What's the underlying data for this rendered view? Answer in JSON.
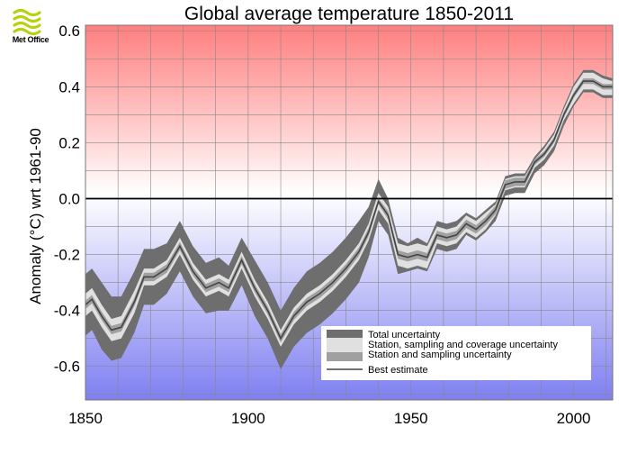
{
  "logo": {
    "text": "Met Office",
    "icon": "met-office-waves-logo",
    "color": "#b5d20c"
  },
  "chart_data": {
    "type": "line",
    "title": "Global average temperature 1850-2011",
    "xlabel": "",
    "ylabel": "Anomaly (°C) wrt 1961-90",
    "xlim": [
      1850,
      2012
    ],
    "ylim": [
      -0.72,
      0.62
    ],
    "x_ticks": [
      1850,
      1900,
      1950,
      2000
    ],
    "y_ticks": [
      0.6,
      0.4,
      0.2,
      0.0,
      -0.2,
      -0.4,
      -0.6
    ],
    "y_tick_labels": [
      "0.6",
      "0.4",
      "0.2",
      "0.0",
      "-0.2",
      "-0.4",
      "-0.6"
    ],
    "grid": true,
    "background": {
      "warm": "#ff7f7f",
      "cold": "#7f7ff2"
    },
    "legend": {
      "placement": "bottom-right",
      "entries": [
        {
          "label": "Total uncertainty",
          "color": "#6e6e6e"
        },
        {
          "label": "Station, sampling and coverage uncertainty",
          "color": "#e0e0e0"
        },
        {
          "label": "Station and sampling uncertainty",
          "color": "#a0a0a0"
        },
        {
          "label": "Best estimate",
          "color": "#555555"
        }
      ]
    },
    "x": [
      1850,
      1852,
      1855,
      1858,
      1861,
      1865,
      1868,
      1871,
      1875,
      1879,
      1883,
      1887,
      1891,
      1894,
      1898,
      1902,
      1906,
      1910,
      1914,
      1918,
      1922,
      1926,
      1930,
      1934,
      1937,
      1940,
      1943,
      1946,
      1949,
      1952,
      1955,
      1958,
      1961,
      1964,
      1967,
      1970,
      1973,
      1976,
      1979,
      1982,
      1985,
      1988,
      1991,
      1994,
      1997,
      2000,
      2003,
      2006,
      2009,
      2012
    ],
    "series": [
      {
        "name": "Best estimate",
        "values": [
          -0.38,
          -0.36,
          -0.42,
          -0.47,
          -0.46,
          -0.37,
          -0.28,
          -0.28,
          -0.25,
          -0.17,
          -0.26,
          -0.32,
          -0.3,
          -0.32,
          -0.22,
          -0.32,
          -0.4,
          -0.5,
          -0.42,
          -0.37,
          -0.34,
          -0.3,
          -0.25,
          -0.19,
          -0.12,
          -0.01,
          -0.06,
          -0.2,
          -0.21,
          -0.2,
          -0.21,
          -0.13,
          -0.14,
          -0.13,
          -0.09,
          -0.11,
          -0.08,
          -0.04,
          0.05,
          0.06,
          0.06,
          0.13,
          0.16,
          0.21,
          0.3,
          0.37,
          0.42,
          0.42,
          0.4,
          0.4
        ]
      },
      {
        "name": "Total uncertainty upper",
        "values": [
          -0.27,
          -0.25,
          -0.3,
          -0.35,
          -0.35,
          -0.26,
          -0.18,
          -0.18,
          -0.16,
          -0.08,
          -0.17,
          -0.23,
          -0.21,
          -0.24,
          -0.14,
          -0.22,
          -0.3,
          -0.4,
          -0.32,
          -0.26,
          -0.23,
          -0.19,
          -0.14,
          -0.08,
          -0.03,
          0.07,
          0.0,
          -0.14,
          -0.16,
          -0.14,
          -0.16,
          -0.08,
          -0.09,
          -0.08,
          -0.05,
          -0.07,
          -0.04,
          -0.01,
          0.08,
          0.09,
          0.09,
          0.15,
          0.19,
          0.24,
          0.33,
          0.41,
          0.46,
          0.46,
          0.44,
          0.43
        ]
      },
      {
        "name": "Total uncertainty lower",
        "values": [
          -0.49,
          -0.47,
          -0.54,
          -0.58,
          -0.57,
          -0.48,
          -0.38,
          -0.38,
          -0.34,
          -0.26,
          -0.35,
          -0.41,
          -0.4,
          -0.4,
          -0.31,
          -0.42,
          -0.5,
          -0.61,
          -0.53,
          -0.48,
          -0.45,
          -0.41,
          -0.36,
          -0.3,
          -0.21,
          -0.08,
          -0.13,
          -0.27,
          -0.26,
          -0.25,
          -0.26,
          -0.18,
          -0.19,
          -0.18,
          -0.13,
          -0.15,
          -0.12,
          -0.08,
          0.01,
          0.02,
          0.02,
          0.09,
          0.12,
          0.17,
          0.26,
          0.33,
          0.38,
          0.38,
          0.36,
          0.36
        ]
      },
      {
        "name": "Station, sampling and coverage uncertainty upper",
        "values": [
          -0.34,
          -0.32,
          -0.38,
          -0.43,
          -0.42,
          -0.33,
          -0.25,
          -0.25,
          -0.22,
          -0.14,
          -0.23,
          -0.29,
          -0.27,
          -0.29,
          -0.19,
          -0.29,
          -0.37,
          -0.47,
          -0.39,
          -0.34,
          -0.31,
          -0.27,
          -0.22,
          -0.16,
          -0.09,
          0.02,
          -0.03,
          -0.16,
          -0.17,
          -0.16,
          -0.17,
          -0.1,
          -0.11,
          -0.1,
          -0.06,
          -0.08,
          -0.05,
          -0.02,
          0.07,
          0.08,
          0.08,
          0.14,
          0.18,
          0.23,
          0.32,
          0.4,
          0.45,
          0.45,
          0.43,
          0.42
        ]
      },
      {
        "name": "Station, sampling and coverage uncertainty lower",
        "values": [
          -0.42,
          -0.4,
          -0.46,
          -0.51,
          -0.5,
          -0.41,
          -0.31,
          -0.31,
          -0.28,
          -0.2,
          -0.29,
          -0.35,
          -0.33,
          -0.35,
          -0.25,
          -0.35,
          -0.43,
          -0.53,
          -0.45,
          -0.4,
          -0.37,
          -0.33,
          -0.28,
          -0.22,
          -0.15,
          -0.04,
          -0.09,
          -0.24,
          -0.25,
          -0.24,
          -0.25,
          -0.16,
          -0.17,
          -0.16,
          -0.12,
          -0.14,
          -0.11,
          -0.06,
          0.03,
          0.04,
          0.04,
          0.11,
          0.14,
          0.19,
          0.28,
          0.34,
          0.39,
          0.39,
          0.37,
          0.37
        ]
      },
      {
        "name": "Station and sampling uncertainty upper",
        "values": [
          -0.365,
          -0.345,
          -0.405,
          -0.455,
          -0.445,
          -0.355,
          -0.265,
          -0.265,
          -0.235,
          -0.155,
          -0.245,
          -0.305,
          -0.285,
          -0.305,
          -0.205,
          -0.305,
          -0.385,
          -0.485,
          -0.405,
          -0.355,
          -0.325,
          -0.285,
          -0.235,
          -0.175,
          -0.105,
          0.0,
          -0.045,
          -0.185,
          -0.195,
          -0.185,
          -0.195,
          -0.115,
          -0.125,
          -0.115,
          -0.075,
          -0.095,
          -0.065,
          -0.025,
          0.065,
          0.075,
          0.075,
          0.14,
          0.17,
          0.22,
          0.31,
          0.38,
          0.43,
          0.43,
          0.41,
          0.41
        ]
      },
      {
        "name": "Station and sampling uncertainty lower",
        "values": [
          -0.395,
          -0.375,
          -0.435,
          -0.485,
          -0.475,
          -0.385,
          -0.295,
          -0.295,
          -0.265,
          -0.185,
          -0.275,
          -0.335,
          -0.315,
          -0.335,
          -0.235,
          -0.335,
          -0.415,
          -0.515,
          -0.435,
          -0.385,
          -0.355,
          -0.315,
          -0.265,
          -0.205,
          -0.135,
          -0.02,
          -0.075,
          -0.215,
          -0.225,
          -0.215,
          -0.225,
          -0.145,
          -0.155,
          -0.145,
          -0.105,
          -0.125,
          -0.095,
          -0.055,
          0.035,
          0.045,
          0.045,
          0.12,
          0.15,
          0.2,
          0.29,
          0.36,
          0.41,
          0.41,
          0.39,
          0.39
        ]
      }
    ]
  }
}
